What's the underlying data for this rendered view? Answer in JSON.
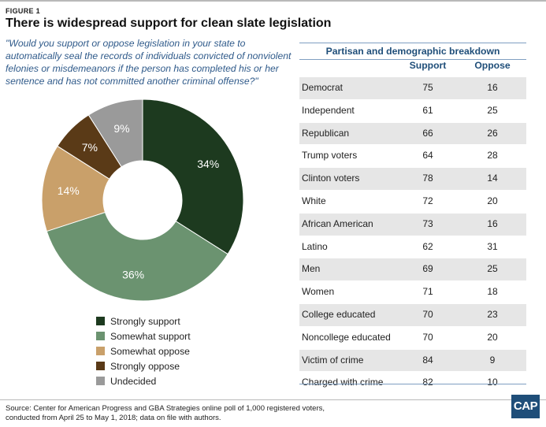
{
  "figure_label": "FIGURE 1",
  "title": "There is widespread support for clean slate legislation",
  "question": "\"Would you support or oppose legislation in your state to automatically seal the records of individuals convicted of nonviolent felonies or misdemeanors if the person has completed his or her sentence and has not committed another criminal offense?\"",
  "chart_data": [
    {
      "type": "pie",
      "subtype": "donut",
      "categories": [
        "Strongly support",
        "Somewhat support",
        "Somewhat oppose",
        "Strongly oppose",
        "Undecided"
      ],
      "values": [
        34,
        36,
        14,
        7,
        9
      ],
      "data_labels": [
        "34%",
        "36%",
        "14%",
        "7%",
        "9%"
      ],
      "colors": [
        "#1d3a1f",
        "#6b9370",
        "#c9a06a",
        "#5a3a17",
        "#9a9a9a"
      ],
      "label_colors": [
        "#ffffff",
        "#ffffff",
        "#ffffff",
        "#ffffff",
        "#ffffff"
      ],
      "legend_position": "bottom"
    },
    {
      "type": "table",
      "title": "Partisan and demographic breakdown",
      "columns": [
        "Support",
        "Oppose"
      ],
      "rows": [
        {
          "label": "Democrat",
          "support": 75,
          "oppose": 16
        },
        {
          "label": "Independent",
          "support": 61,
          "oppose": 25
        },
        {
          "label": "Republican",
          "support": 66,
          "oppose": 26
        },
        {
          "label": "Trump voters",
          "support": 64,
          "oppose": 28
        },
        {
          "label": "Clinton voters",
          "support": 78,
          "oppose": 14
        },
        {
          "label": "White",
          "support": 72,
          "oppose": 20
        },
        {
          "label": "African American",
          "support": 73,
          "oppose": 16
        },
        {
          "label": "Latino",
          "support": 62,
          "oppose": 31
        },
        {
          "label": "Men",
          "support": 69,
          "oppose": 25
        },
        {
          "label": "Women",
          "support": 71,
          "oppose": 18
        },
        {
          "label": "College educated",
          "support": 70,
          "oppose": 23
        },
        {
          "label": "Noncollege educated",
          "support": 70,
          "oppose": 20
        },
        {
          "label": "Victim of crime",
          "support": 84,
          "oppose": 9
        },
        {
          "label": "Charged with crime",
          "support": 82,
          "oppose": 10
        }
      ]
    }
  ],
  "source": "Source: Center for American Progress and GBA Strategies online poll of 1,000 registered voters, conducted from April 25 to May 1, 2018; data on file with authors.",
  "logo_text": "CAP"
}
